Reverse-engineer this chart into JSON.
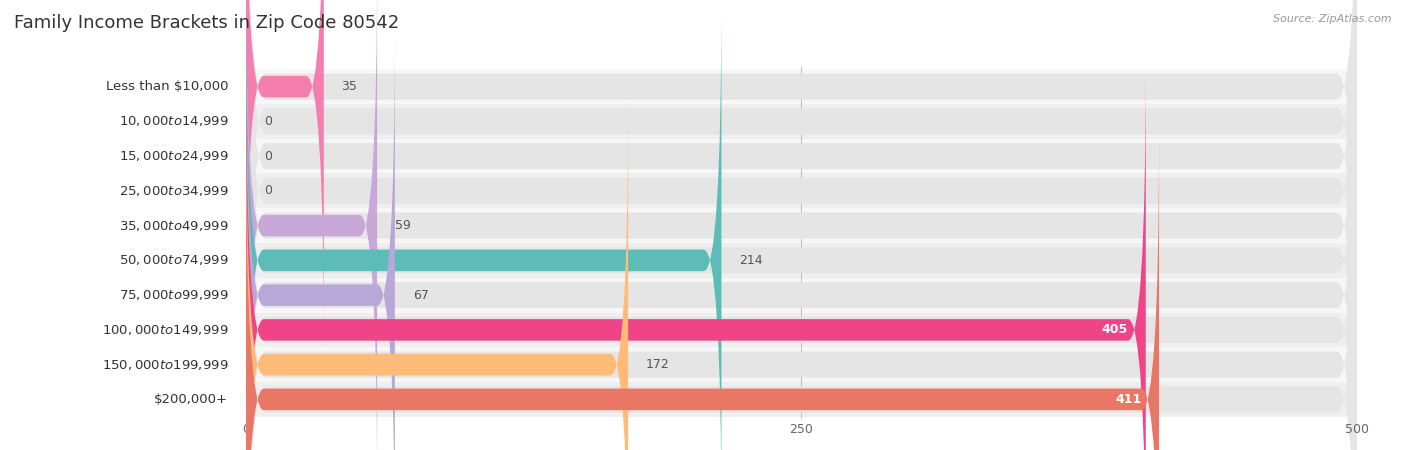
{
  "title": "Family Income Brackets in Zip Code 80542",
  "source": "Source: ZipAtlas.com",
  "categories": [
    "Less than $10,000",
    "$10,000 to $14,999",
    "$15,000 to $24,999",
    "$25,000 to $34,999",
    "$35,000 to $49,999",
    "$50,000 to $74,999",
    "$75,000 to $99,999",
    "$100,000 to $149,999",
    "$150,000 to $199,999",
    "$200,000+"
  ],
  "values": [
    35,
    0,
    0,
    0,
    59,
    214,
    67,
    405,
    172,
    411
  ],
  "bar_colors": [
    "#F47FAF",
    "#FFBB88",
    "#F4A0A0",
    "#A8C4E0",
    "#C8A8D8",
    "#5BBCB8",
    "#B8A8D8",
    "#F04488",
    "#FFBB77",
    "#E87766"
  ],
  "xlim": [
    0,
    500
  ],
  "xticks": [
    0,
    250,
    500
  ],
  "bar_bg_color": "#e5e5e5",
  "title_fontsize": 13,
  "label_fontsize": 9.5,
  "value_fontsize": 9
}
